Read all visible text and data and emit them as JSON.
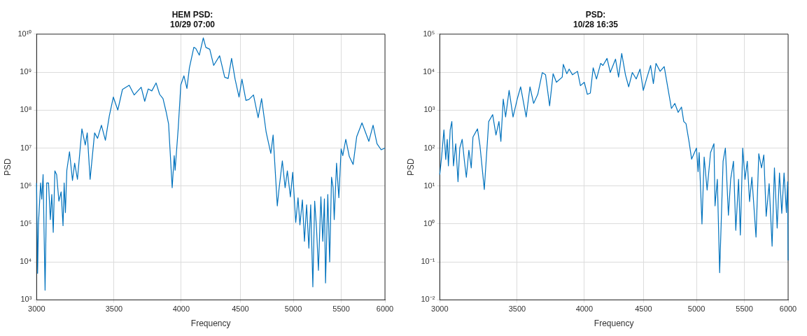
{
  "chart_data": [
    {
      "type": "line",
      "title": "HEM PSD:\n10/29 07:00",
      "xlabel": "Frequency",
      "ylabel": "PSD",
      "log": "xy",
      "grid": true,
      "legend": false,
      "xlim": [
        3000,
        6000
      ],
      "xticks": [
        3000,
        3500,
        4000,
        4500,
        5000,
        5500,
        6000
      ],
      "ylim": [
        1000,
        10000000000
      ],
      "yticks": [
        {
          "value": 1000,
          "label": "10³"
        },
        {
          "value": 10000,
          "label": "10⁴"
        },
        {
          "value": 100000,
          "label": "10⁵"
        },
        {
          "value": 1000000,
          "label": "10⁶"
        },
        {
          "value": 10000000,
          "label": "10⁷"
        },
        {
          "value": 100000000,
          "label": "10⁸"
        },
        {
          "value": 1000000000,
          "label": "10⁹"
        },
        {
          "value": 10000000000,
          "label": "10¹⁰"
        }
      ],
      "series": [
        {
          "color": "#0072bd",
          "x": [
            3000,
            3006,
            3011,
            3024,
            3031,
            3039,
            3051,
            3061,
            3072,
            3083,
            3092,
            3101,
            3111,
            3122,
            3136,
            3150,
            3162,
            3169,
            3177,
            3186,
            3203,
            3222,
            3236,
            3254,
            3283,
            3305,
            3318,
            3337,
            3367,
            3387,
            3413,
            3440,
            3467,
            3495,
            3526,
            3559,
            3607,
            3643,
            3694,
            3720,
            3746,
            3773,
            3805,
            3832,
            3858,
            3882,
            3901,
            3929,
            3945,
            3952,
            3977,
            3997,
            4022,
            4046,
            4066,
            4102,
            4118,
            4147,
            4180,
            4201,
            4234,
            4267,
            4318,
            4362,
            4392,
            4422,
            4453,
            4488,
            4514,
            4550,
            4577,
            4619,
            4662,
            4694,
            4737,
            4781,
            4803,
            4843,
            4859,
            4892,
            4919,
            4941,
            4971,
            4994,
            5024,
            5047,
            5066,
            5091,
            5112,
            5134,
            5157,
            5176,
            5198,
            5217,
            5236,
            5256,
            5282,
            5302,
            5319,
            5331,
            5355,
            5375,
            5395,
            5412,
            5424,
            5449,
            5474,
            5499,
            5517,
            5550,
            5589,
            5632,
            5672,
            5732,
            5811,
            5860,
            5906,
            5955,
            6000
          ],
          "values": [
            1200000,
            5000,
            100000,
            1200000,
            450000,
            2000000,
            1800,
            1200000,
            1200000,
            130000,
            600000,
            60000,
            2500000,
            2000000,
            400000,
            700000,
            90000,
            1200000,
            200000,
            2600000,
            8000000,
            1400000,
            4000000,
            1500000,
            32000000,
            12000000,
            25000000,
            1500000,
            25000000,
            18000000,
            40000000,
            16000000,
            70000000,
            220000000,
            100000000,
            350000000,
            450000000,
            250000000,
            400000000,
            170000000,
            360000000,
            320000000,
            520000000,
            260000000,
            200000000,
            90000000,
            43000000,
            900000,
            6300000,
            2600000,
            35000000,
            460000000,
            800000000,
            370000000,
            1300000000,
            4500000000,
            4200000000,
            2800000000,
            8000000000,
            4500000000,
            4000000000,
            1500000000,
            2700000000,
            730000000,
            680000000,
            2300000000,
            650000000,
            220000000,
            650000000,
            180000000,
            190000000,
            250000000,
            63000000,
            200000000,
            26000000,
            7200000,
            22000000,
            300000,
            800000,
            4600000,
            900000,
            2500000,
            520000,
            2300000,
            110000,
            490000,
            95000,
            430000,
            35000,
            320000,
            23000,
            320000,
            2200,
            400000,
            78000,
            6000,
            520000,
            35000,
            460000,
            2800,
            600000,
            10000,
            1700000,
            900000,
            130000,
            4000000,
            490000,
            9500000,
            6300000,
            17000000,
            6000000,
            3700000,
            20000000,
            46000000,
            15000000,
            40000000,
            13000000,
            9000000,
            10000000
          ]
        }
      ]
    },
    {
      "type": "line",
      "title": "PSD:\n10/28 16:35",
      "xlabel": "Frequency",
      "ylabel": "PSD",
      "log": "xy",
      "grid": true,
      "legend": false,
      "xlim": [
        3000,
        6000
      ],
      "xticks": [
        3000,
        3500,
        4000,
        4500,
        5000,
        5500,
        6000
      ],
      "ylim": [
        0.01,
        100000
      ],
      "yticks": [
        {
          "value": 0.01,
          "label": "10⁻²"
        },
        {
          "value": 0.1,
          "label": "10⁻¹"
        },
        {
          "value": 1,
          "label": "10⁰"
        },
        {
          "value": 10,
          "label": "10¹"
        },
        {
          "value": 100,
          "label": "10²"
        },
        {
          "value": 1000,
          "label": "10³"
        },
        {
          "value": 10000,
          "label": "10⁴"
        },
        {
          "value": 100000,
          "label": "10⁵"
        }
      ],
      "series": [
        {
          "color": "#0072bd",
          "x": [
            3000,
            3011,
            3025,
            3036,
            3045,
            3052,
            3063,
            3073,
            3083,
            3097,
            3111,
            3122,
            3137,
            3151,
            3163,
            3179,
            3194,
            3205,
            3234,
            3250,
            3278,
            3307,
            3333,
            3355,
            3375,
            3388,
            3404,
            3420,
            3444,
            3471,
            3500,
            3524,
            3563,
            3590,
            3616,
            3646,
            3679,
            3703,
            3733,
            3759,
            3784,
            3828,
            3836,
            3863,
            3881,
            3907,
            3946,
            3969,
            4000,
            4024,
            4048,
            4071,
            4098,
            4132,
            4151,
            4185,
            4212,
            4256,
            4282,
            4309,
            4341,
            4369,
            4401,
            4435,
            4469,
            4498,
            4527,
            4564,
            4589,
            4613,
            4651,
            4689,
            4725,
            4757,
            4789,
            4821,
            4853,
            4875,
            4897,
            4926,
            4952,
            5000,
            5016,
            5027,
            5055,
            5077,
            5107,
            5142,
            5177,
            5188,
            5212,
            5236,
            5272,
            5296,
            5328,
            5352,
            5382,
            5407,
            5437,
            5456,
            5482,
            5507,
            5532,
            5557,
            5583,
            5629,
            5660,
            5691,
            5717,
            5744,
            5778,
            5812,
            5839,
            5871,
            5898,
            5925,
            5952,
            5980,
            5994,
            6000
          ],
          "values": [
            20,
            58,
            300,
            50,
            170,
            34,
            300,
            500,
            34,
            130,
            13,
            100,
            170,
            45,
            17,
            88,
            30,
            195,
            320,
            115,
            8.1,
            500,
            760,
            220,
            500,
            150,
            1950,
            660,
            3300,
            660,
            1950,
            4100,
            660,
            4100,
            1500,
            2600,
            9700,
            8500,
            1300,
            9100,
            5400,
            7400,
            16000,
            9100,
            12000,
            8500,
            10500,
            4400,
            5400,
            2600,
            2800,
            13000,
            6600,
            17000,
            15000,
            23000,
            9800,
            22000,
            7400,
            31000,
            8500,
            4100,
            9800,
            6600,
            12000,
            3300,
            6600,
            15000,
            5000,
            17000,
            10500,
            14000,
            3600,
            1100,
            1500,
            870,
            1200,
            500,
            440,
            150,
            51,
            100,
            24,
            76,
            1,
            58,
            7.8,
            76,
            130,
            3,
            15,
            0.052,
            45,
            100,
            1.7,
            15,
            45,
            0.68,
            15,
            0.51,
            100,
            15,
            45,
            3.9,
            17,
            0.45,
            71,
            30,
            66,
            1.6,
            11.5,
            0.26,
            30,
            0.78,
            22,
            1.9,
            22,
            2,
            13,
            0.11
          ]
        }
      ]
    }
  ]
}
